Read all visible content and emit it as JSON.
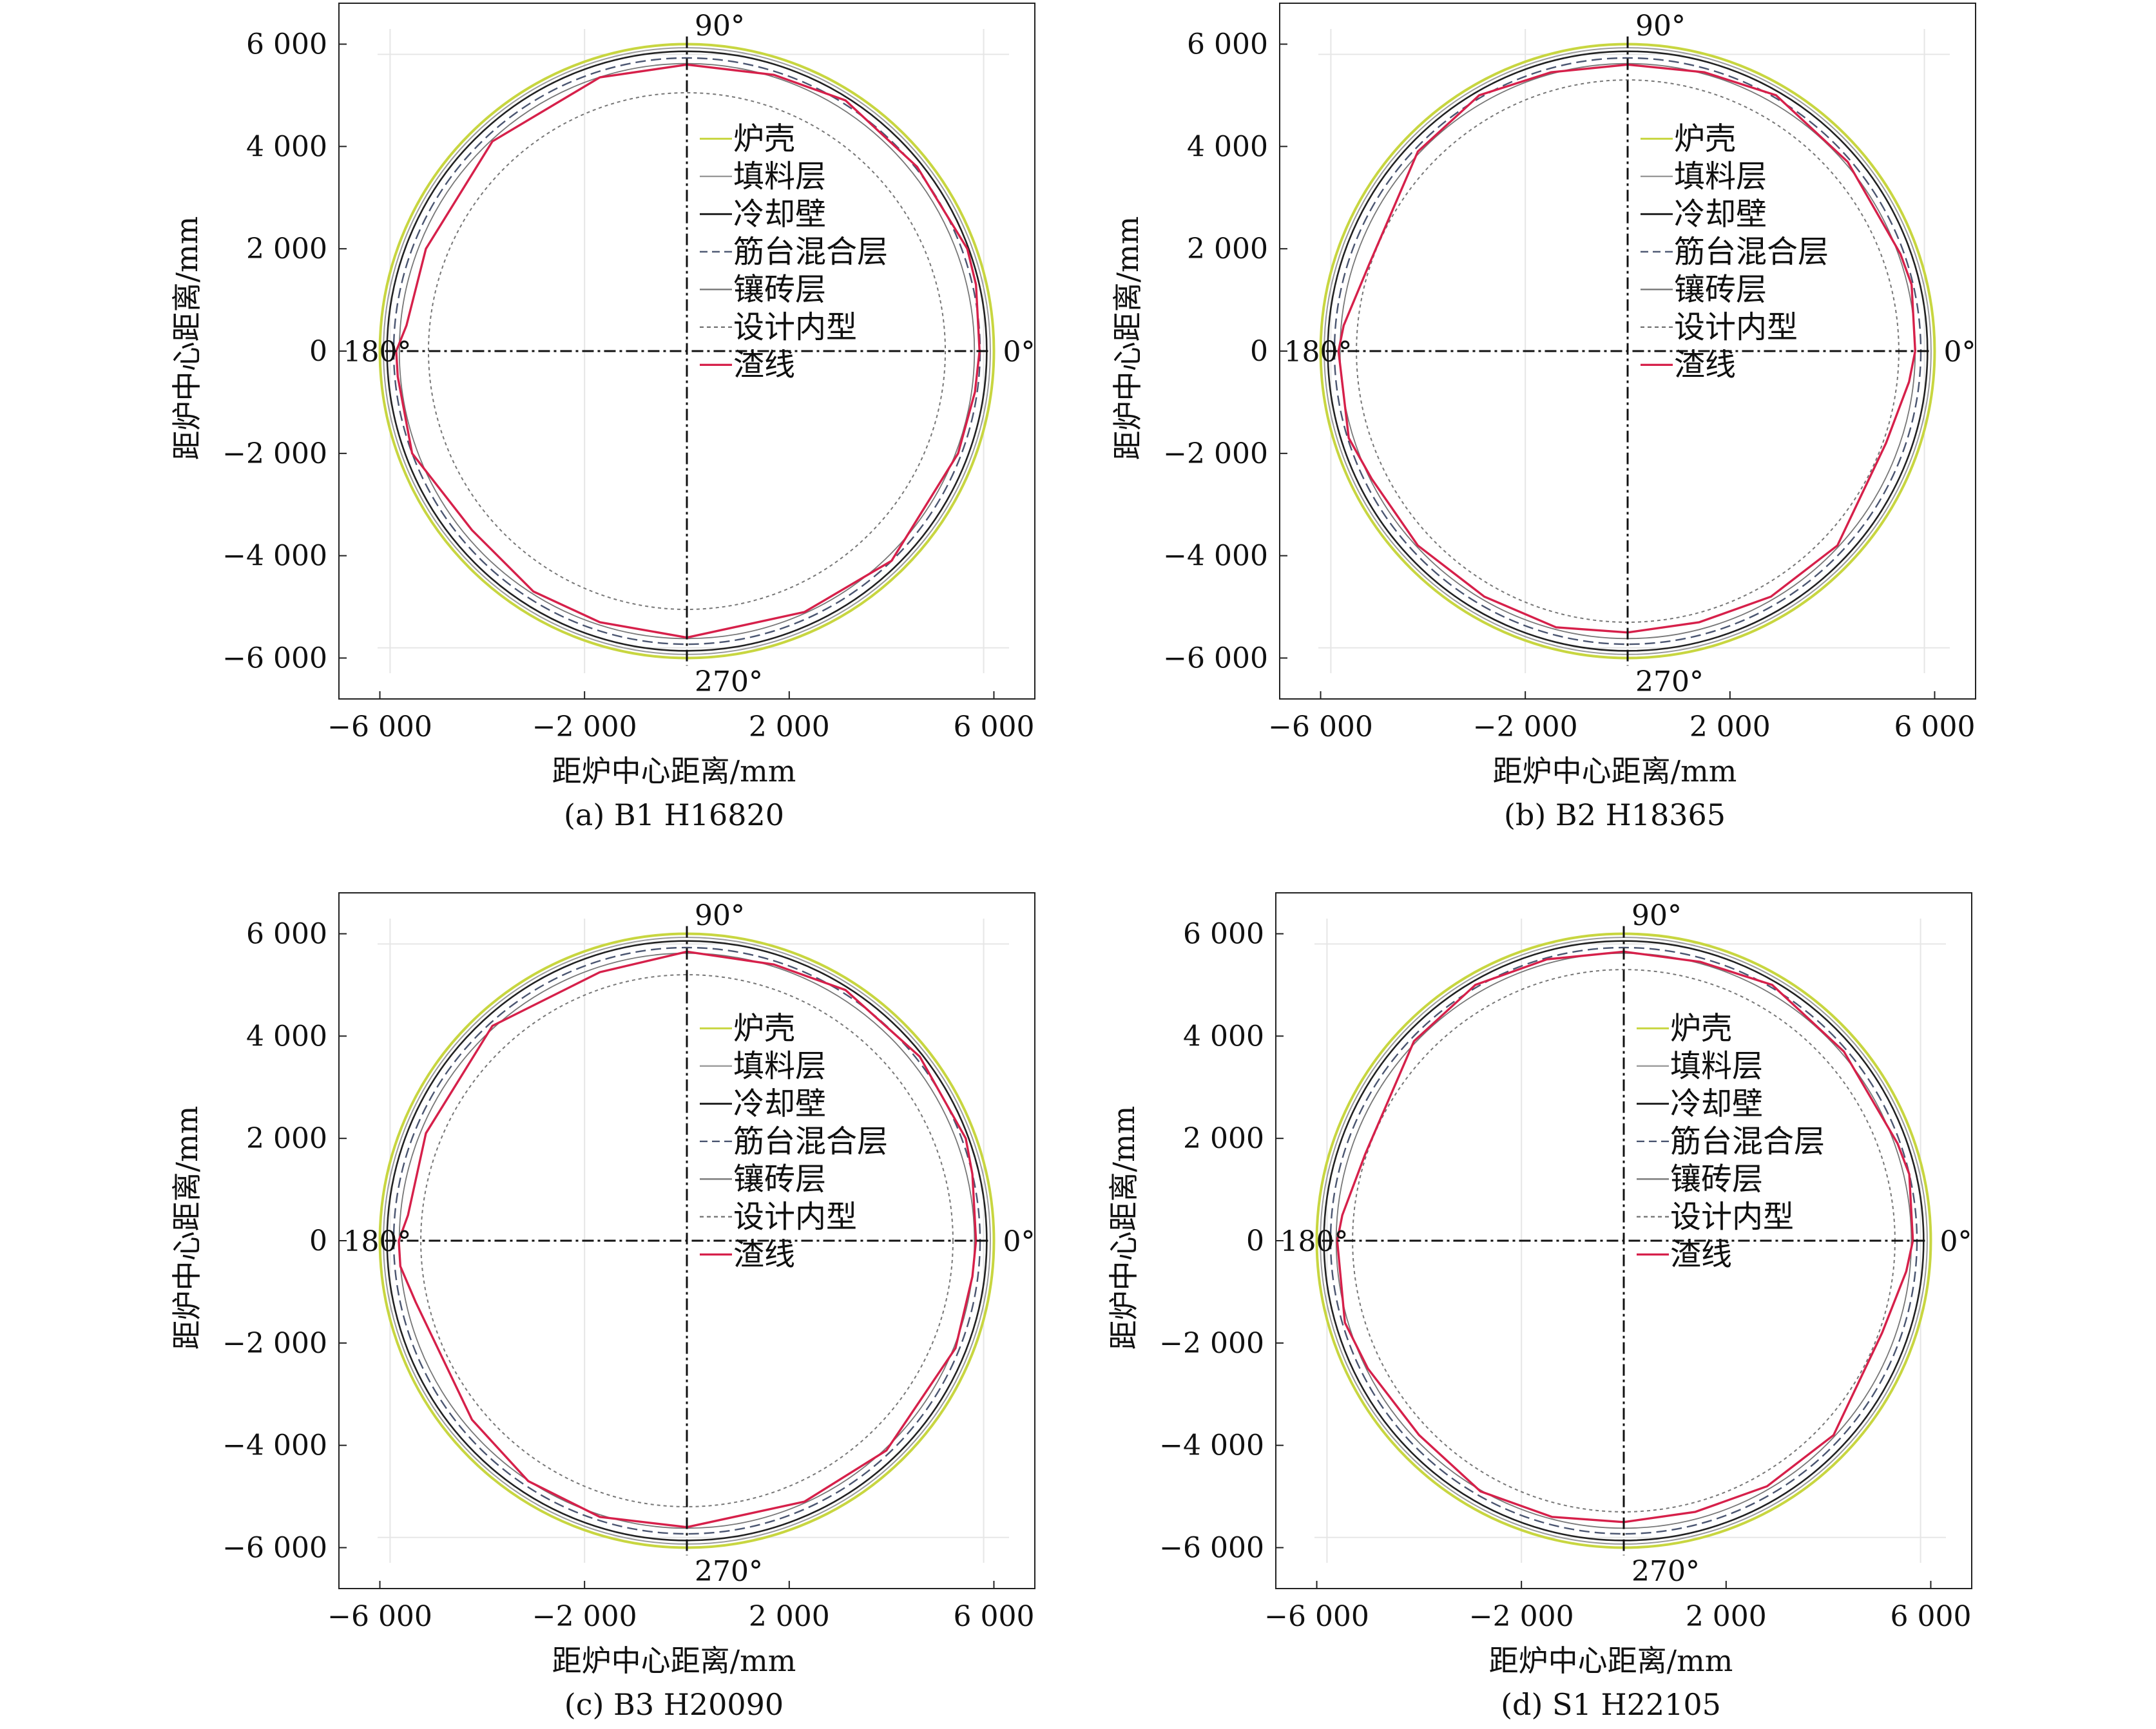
{
  "figure": {
    "layer_names": [
      "炉壳",
      "填料层",
      "冷却壁",
      "筋台混合层",
      "镶砖层",
      "设计内型",
      "渣线"
    ],
    "layer_colors": {
      "炉壳": "#c8d640",
      "填料层": "#9a9a9a",
      "冷却壁": "#222222",
      "筋台混合层": "#4a5570",
      "镶砖层": "#777777",
      "设计内型": "#777777",
      "渣线": "#d6204a"
    }
  },
  "chart_data": [
    {
      "type": "line",
      "title": "(a) B1 H16820",
      "xlabel": "距炉中心距离/mm",
      "ylabel": "距炉中心距离/mm",
      "xlim": [
        -6800,
        6800
      ],
      "ylim": [
        -6800,
        6800
      ],
      "x_ticks": [
        -6000,
        -2000,
        2000,
        6000
      ],
      "x_tick_labels": [
        "−6 000",
        "−2 000",
        "2 000",
        "6 000"
      ],
      "y_ticks": [
        6000,
        4000,
        2000,
        0,
        -2000,
        -4000,
        -6000
      ],
      "y_tick_labels": [
        "6 000",
        "4 000",
        "2 000",
        "0",
        "−2 000",
        "−4 000",
        "−6 000"
      ],
      "angle_labels": [
        "0°",
        "90°",
        "180°",
        "270°"
      ],
      "legend_position": "center-right",
      "grid": false,
      "series": [
        {
          "name": "炉壳",
          "style": "circle",
          "radius": 6000
        },
        {
          "name": "填料层",
          "style": "circle",
          "radius": 5930
        },
        {
          "name": "冷却壁",
          "style": "circle",
          "radius": 5860
        },
        {
          "name": "筋台混合层",
          "style": "circle",
          "radius": 5730
        },
        {
          "name": "镶砖层",
          "style": "circle",
          "radius": 5620
        },
        {
          "name": "设计内型",
          "style": "circle",
          "radius": 5050
        },
        {
          "name": "渣线",
          "style": "polyline",
          "x": [
            5720,
            5650,
            5480,
            4500,
            3100,
            1700,
            0,
            -1700,
            -3800,
            -5100,
            -5480,
            -5680,
            -5650,
            -5370,
            -4200,
            -3000,
            -1700,
            0,
            2300,
            4000,
            5300,
            5630,
            5720
          ],
          "y": [
            0,
            1300,
            2000,
            3600,
            4900,
            5400,
            5600,
            5350,
            4100,
            2000,
            500,
            0,
            -500,
            -2000,
            -3500,
            -4700,
            -5300,
            -5600,
            -5100,
            -4100,
            -2000,
            -800,
            0
          ]
        }
      ]
    },
    {
      "type": "line",
      "title": "(b) B2 H18365",
      "xlabel": "距炉中心距离/mm",
      "ylabel": "距炉中心距离/mm",
      "xlim": [
        -6800,
        6800
      ],
      "ylim": [
        -6800,
        6800
      ],
      "x_ticks": [
        -6000,
        -2000,
        2000,
        6000
      ],
      "x_tick_labels": [
        "−6 000",
        "−2 000",
        "2 000",
        "6 000"
      ],
      "y_ticks": [
        6000,
        4000,
        2000,
        0,
        -2000,
        -4000,
        -6000
      ],
      "y_tick_labels": [
        "6 000",
        "4 000",
        "2 000",
        "0",
        "−2 000",
        "−4 000",
        "−6 000"
      ],
      "angle_labels": [
        "0°",
        "90°",
        "180°",
        "270°"
      ],
      "legend_position": "center-right",
      "grid": false,
      "series": [
        {
          "name": "炉壳",
          "style": "circle",
          "radius": 6000
        },
        {
          "name": "填料层",
          "style": "circle",
          "radius": 5930
        },
        {
          "name": "冷却壁",
          "style": "circle",
          "radius": 5860
        },
        {
          "name": "筋台混合层",
          "style": "circle",
          "radius": 5730
        },
        {
          "name": "镶砖层",
          "style": "circle",
          "radius": 5620
        },
        {
          "name": "设计内型",
          "style": "circle",
          "radius": 5300
        },
        {
          "name": "渣线",
          "style": "polyline",
          "x": [
            5620,
            5550,
            5330,
            4300,
            2900,
            1500,
            0,
            -1500,
            -2900,
            -4100,
            -5050,
            -5550,
            -5650,
            -5450,
            -5000,
            -4100,
            -2800,
            -1400,
            0,
            1400,
            2800,
            4100,
            5050,
            5500,
            5620
          ],
          "y": [
            0,
            1300,
            1900,
            3700,
            5000,
            5450,
            5600,
            5450,
            5000,
            3900,
            1700,
            500,
            0,
            -1700,
            -2500,
            -3800,
            -4800,
            -5400,
            -5500,
            -5300,
            -4800,
            -3800,
            -1800,
            -600,
            0
          ]
        }
      ]
    },
    {
      "type": "line",
      "title": "(c) B3 H20090",
      "xlabel": "距炉中心距离/mm",
      "ylabel": "距炉中心距离/mm",
      "xlim": [
        -6800,
        6800
      ],
      "ylim": [
        -6800,
        6800
      ],
      "x_ticks": [
        -6000,
        -2000,
        2000,
        6000
      ],
      "x_tick_labels": [
        "−6 000",
        "−2 000",
        "2 000",
        "6 000"
      ],
      "y_ticks": [
        6000,
        4000,
        2000,
        0,
        -2000,
        -4000,
        -6000
      ],
      "y_tick_labels": [
        "6 000",
        "4 000",
        "2 000",
        "0",
        "−2 000",
        "−4 000",
        "−6 000"
      ],
      "angle_labels": [
        "0°",
        "90°",
        "180°",
        "270°"
      ],
      "legend_position": "center-right",
      "grid": false,
      "series": [
        {
          "name": "炉壳",
          "style": "circle",
          "radius": 6000
        },
        {
          "name": "填料层",
          "style": "circle",
          "radius": 5930
        },
        {
          "name": "冷却壁",
          "style": "circle",
          "radius": 5860
        },
        {
          "name": "筋台混合层",
          "style": "circle",
          "radius": 5730
        },
        {
          "name": "镶砖层",
          "style": "circle",
          "radius": 5620
        },
        {
          "name": "设计内型",
          "style": "circle",
          "radius": 5200
        },
        {
          "name": "渣线",
          "style": "polyline",
          "x": [
            5650,
            5580,
            5450,
            4550,
            3100,
            1700,
            0,
            -1700,
            -3800,
            -5100,
            -5450,
            -5630,
            -5600,
            -5300,
            -4200,
            -3100,
            -1700,
            0,
            2300,
            3900,
            5250,
            5580,
            5650
          ],
          "y": [
            0,
            1300,
            2000,
            3600,
            4900,
            5400,
            5650,
            5250,
            4200,
            2100,
            500,
            0,
            -500,
            -1200,
            -3500,
            -4700,
            -5400,
            -5600,
            -5100,
            -4100,
            -2100,
            -700,
            0
          ]
        }
      ]
    },
    {
      "type": "line",
      "title": "(d) S1 H22105",
      "xlabel": "距炉中心距离/mm",
      "ylabel": "距炉中心距离/mm",
      "xlim": [
        -6800,
        6800
      ],
      "ylim": [
        -6800,
        6800
      ],
      "x_ticks": [
        -6000,
        -2000,
        2000,
        6000
      ],
      "x_tick_labels": [
        "−6 000",
        "−2 000",
        "2 000",
        "6 000"
      ],
      "y_ticks": [
        6000,
        4000,
        2000,
        0,
        -2000,
        -4000,
        -6000
      ],
      "y_tick_labels": [
        "6 000",
        "4 000",
        "2 000",
        "0",
        "−2 000",
        "−4 000",
        "−6 000"
      ],
      "angle_labels": [
        "0°",
        "90°",
        "180°",
        "270°"
      ],
      "legend_position": "center-right",
      "grid": false,
      "series": [
        {
          "name": "炉壳",
          "style": "circle",
          "radius": 6000
        },
        {
          "name": "填料层",
          "style": "circle",
          "radius": 5930
        },
        {
          "name": "冷却壁",
          "style": "circle",
          "radius": 5860
        },
        {
          "name": "筋台混合层",
          "style": "circle",
          "radius": 5730
        },
        {
          "name": "镶砖层",
          "style": "circle",
          "radius": 5620
        },
        {
          "name": "设计内型",
          "style": "circle",
          "radius": 5300
        },
        {
          "name": "渣线",
          "style": "polyline",
          "x": [
            5650,
            5580,
            5350,
            4300,
            2900,
            1500,
            0,
            -1500,
            -2900,
            -4100,
            -5050,
            -5500,
            -5600,
            -5450,
            -5000,
            -4000,
            -2800,
            -1400,
            0,
            1400,
            2800,
            4100,
            5050,
            5520,
            5650
          ],
          "y": [
            0,
            1300,
            1900,
            3700,
            5000,
            5450,
            5650,
            5500,
            5000,
            3900,
            1700,
            500,
            0,
            -1600,
            -2500,
            -3800,
            -4900,
            -5400,
            -5500,
            -5300,
            -4800,
            -3800,
            -1800,
            -600,
            0
          ]
        }
      ]
    }
  ]
}
